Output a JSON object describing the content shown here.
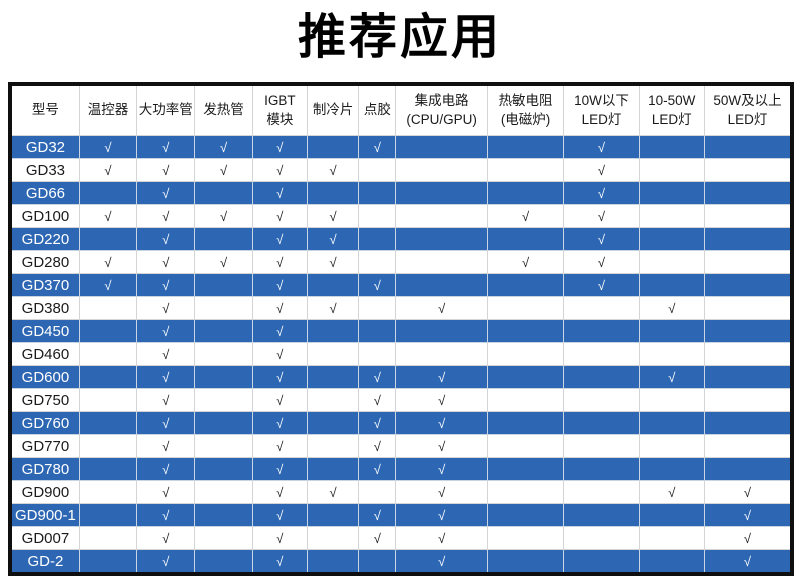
{
  "page_title": "推荐应用",
  "check_glyph": "√",
  "colors": {
    "row_blue": "#2d67b3",
    "row_white": "#ffffff",
    "header_bg": "#ffffff",
    "text_dark": "#1a1a1a",
    "text_light": "#ffffff",
    "grid_line": "#d4d4d4",
    "table_border": "#0f0f0f"
  },
  "table": {
    "columns": [
      {
        "label": "型号"
      },
      {
        "label": "温控器"
      },
      {
        "label": "大功率管"
      },
      {
        "label": "发热管"
      },
      {
        "label": "IGBT\n模块"
      },
      {
        "label": "制冷片"
      },
      {
        "label": "点胶"
      },
      {
        "label": "集成电路\n(CPU/GPU)"
      },
      {
        "label": "热敏电阻\n(电磁炉)"
      },
      {
        "label": "10W以下\nLED灯"
      },
      {
        "label": "10-50W\nLED灯"
      },
      {
        "label": "50W及以上\nLED灯"
      }
    ],
    "rows": [
      {
        "model": "GD32",
        "checks": [
          1,
          1,
          1,
          1,
          0,
          1,
          0,
          0,
          1,
          0,
          0
        ]
      },
      {
        "model": "GD33",
        "checks": [
          1,
          1,
          1,
          1,
          1,
          0,
          0,
          0,
          1,
          0,
          0
        ]
      },
      {
        "model": "GD66",
        "checks": [
          0,
          1,
          0,
          1,
          0,
          0,
          0,
          0,
          1,
          0,
          0
        ]
      },
      {
        "model": "GD100",
        "checks": [
          1,
          1,
          1,
          1,
          1,
          0,
          0,
          1,
          1,
          0,
          0
        ]
      },
      {
        "model": "GD220",
        "checks": [
          0,
          1,
          0,
          1,
          1,
          0,
          0,
          0,
          1,
          0,
          0
        ]
      },
      {
        "model": "GD280",
        "checks": [
          1,
          1,
          1,
          1,
          1,
          0,
          0,
          1,
          1,
          0,
          0
        ]
      },
      {
        "model": "GD370",
        "checks": [
          1,
          1,
          0,
          1,
          0,
          1,
          0,
          0,
          1,
          0,
          0
        ]
      },
      {
        "model": "GD380",
        "checks": [
          0,
          1,
          0,
          1,
          1,
          0,
          1,
          0,
          0,
          1,
          0
        ]
      },
      {
        "model": "GD450",
        "checks": [
          0,
          1,
          0,
          1,
          0,
          0,
          0,
          0,
          0,
          0,
          0
        ]
      },
      {
        "model": "GD460",
        "checks": [
          0,
          1,
          0,
          1,
          0,
          0,
          0,
          0,
          0,
          0,
          0
        ]
      },
      {
        "model": "GD600",
        "checks": [
          0,
          1,
          0,
          1,
          0,
          1,
          1,
          0,
          0,
          1,
          0
        ]
      },
      {
        "model": "GD750",
        "checks": [
          0,
          1,
          0,
          1,
          0,
          1,
          1,
          0,
          0,
          0,
          0
        ]
      },
      {
        "model": "GD760",
        "checks": [
          0,
          1,
          0,
          1,
          0,
          1,
          1,
          0,
          0,
          0,
          0
        ]
      },
      {
        "model": "GD770",
        "checks": [
          0,
          1,
          0,
          1,
          0,
          1,
          1,
          0,
          0,
          0,
          0
        ]
      },
      {
        "model": "GD780",
        "checks": [
          0,
          1,
          0,
          1,
          0,
          1,
          1,
          0,
          0,
          0,
          0
        ]
      },
      {
        "model": "GD900",
        "checks": [
          0,
          1,
          0,
          1,
          1,
          0,
          1,
          0,
          0,
          1,
          1
        ]
      },
      {
        "model": "GD900-1",
        "checks": [
          0,
          1,
          0,
          1,
          0,
          1,
          1,
          0,
          0,
          0,
          1
        ]
      },
      {
        "model": "GD007",
        "checks": [
          0,
          1,
          0,
          1,
          0,
          1,
          1,
          0,
          0,
          0,
          1
        ]
      },
      {
        "model": "GD-2",
        "checks": [
          0,
          1,
          0,
          1,
          0,
          0,
          1,
          0,
          0,
          0,
          1
        ]
      }
    ]
  }
}
